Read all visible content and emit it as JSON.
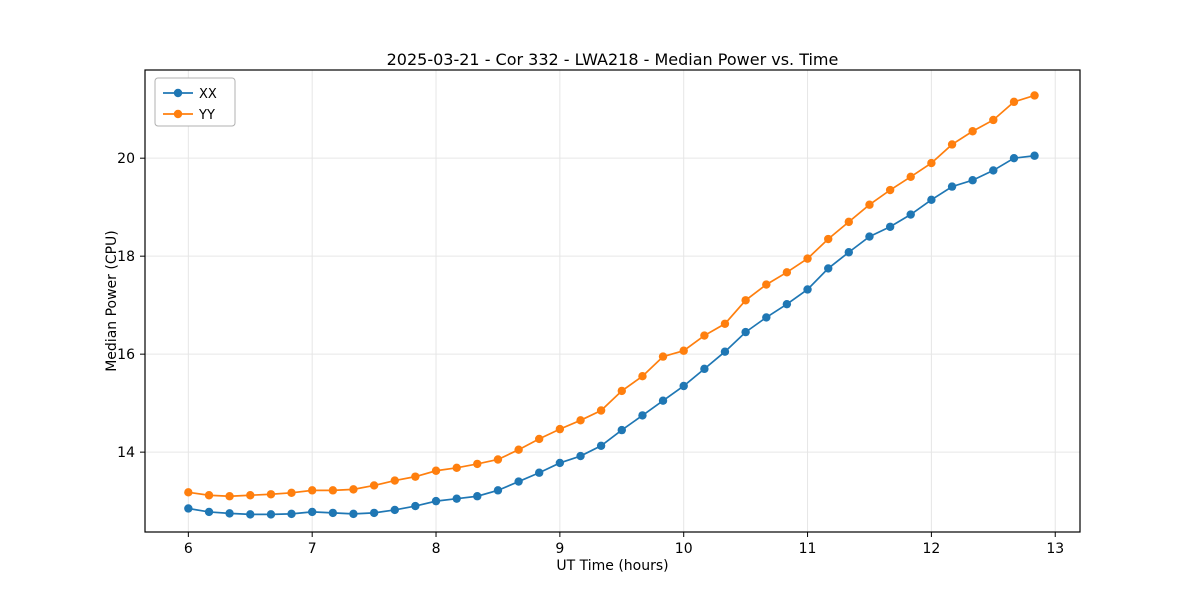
{
  "figure": {
    "title": "2025-03-21 - Cor 332 - LWA218 - Median Power vs. Time"
  },
  "chart_data": {
    "type": "line",
    "title": "2025-03-21 - Cor 332 - LWA218 - Median Power vs. Time",
    "xlabel": "UT Time (hours)",
    "ylabel": "Median Power (CPU)",
    "xlim": [
      5.65,
      13.2
    ],
    "ylim": [
      12.37,
      21.8
    ],
    "xticks": [
      6,
      7,
      8,
      9,
      10,
      11,
      12,
      13
    ],
    "yticks": [
      14,
      16,
      18,
      20
    ],
    "grid": true,
    "legend_position": "upper left",
    "marker": "circle",
    "x": [
      6.0,
      6.167,
      6.333,
      6.5,
      6.667,
      6.833,
      7.0,
      7.167,
      7.333,
      7.5,
      7.667,
      7.833,
      8.0,
      8.167,
      8.333,
      8.5,
      8.667,
      8.833,
      9.0,
      9.167,
      9.333,
      9.5,
      9.667,
      9.833,
      10.0,
      10.167,
      10.333,
      10.5,
      10.667,
      10.833,
      11.0,
      11.167,
      11.333,
      11.5,
      11.667,
      11.833,
      12.0,
      12.167,
      12.333,
      12.5,
      12.667,
      12.833
    ],
    "series": [
      {
        "name": "XX",
        "color": "#1f77b4",
        "values": [
          12.85,
          12.78,
          12.75,
          12.73,
          12.73,
          12.74,
          12.78,
          12.76,
          12.74,
          12.76,
          12.82,
          12.9,
          13.0,
          13.05,
          13.1,
          13.22,
          13.4,
          13.58,
          13.78,
          13.92,
          14.13,
          14.45,
          14.75,
          15.05,
          15.35,
          15.7,
          16.05,
          16.45,
          16.75,
          17.02,
          17.32,
          17.75,
          18.08,
          18.4,
          18.6,
          18.85,
          19.15,
          19.42,
          19.55,
          19.75,
          20.0,
          20.05
        ]
      },
      {
        "name": "YY",
        "color": "#ff7f0e",
        "values": [
          13.18,
          13.12,
          13.1,
          13.12,
          13.14,
          13.17,
          13.22,
          13.22,
          13.24,
          13.32,
          13.42,
          13.5,
          13.62,
          13.68,
          13.76,
          13.85,
          14.05,
          14.27,
          14.47,
          14.65,
          14.85,
          15.25,
          15.55,
          15.95,
          16.07,
          16.38,
          16.62,
          17.1,
          17.42,
          17.67,
          17.95,
          18.35,
          18.7,
          19.05,
          19.35,
          19.62,
          19.9,
          20.28,
          20.55,
          20.78,
          21.15,
          21.28
        ]
      }
    ]
  }
}
